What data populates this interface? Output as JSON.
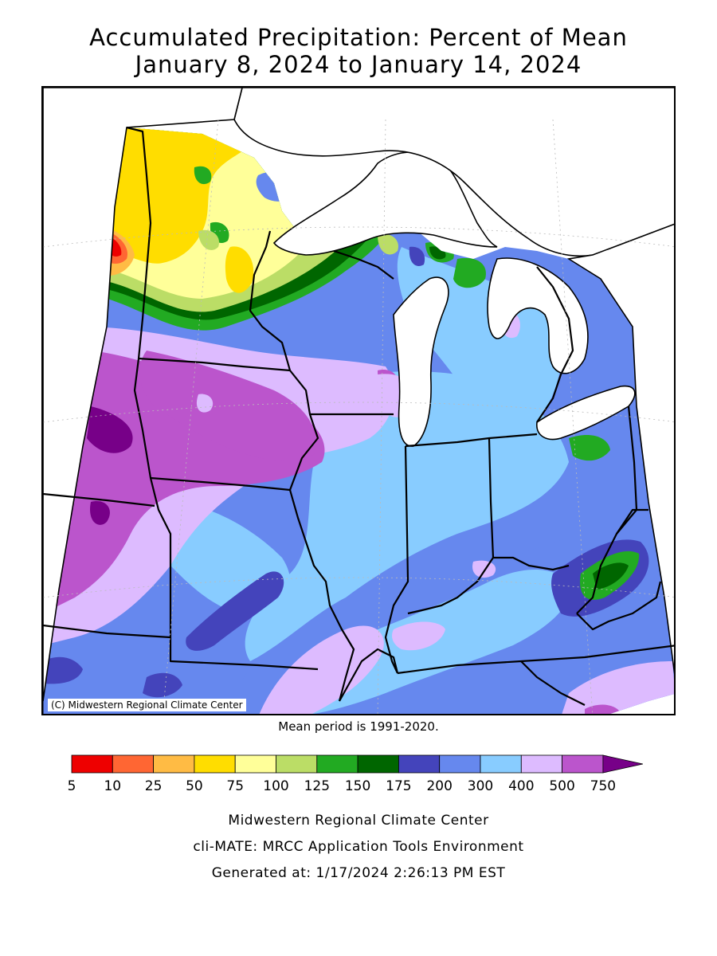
{
  "title": {
    "line1": "Accumulated Precipitation: Percent of Mean",
    "line2": "January 8, 2024 to January 14, 2024"
  },
  "map": {
    "copyright": "(C) Midwestern Regional Climate Center",
    "water_color": "#ffffff",
    "border_color": "#000000"
  },
  "mean_period": "Mean period is 1991-2020.",
  "legend": {
    "ticks": [
      "5",
      "10",
      "25",
      "50",
      "75",
      "100",
      "125",
      "150",
      "175",
      "200",
      "300",
      "400",
      "500",
      "750"
    ],
    "colors": [
      "#ee0000",
      "#ff6633",
      "#ffbb44",
      "#ffdd00",
      "#ffff99",
      "#bbdd66",
      "#22aa22",
      "#006600",
      "#4444bb",
      "#6688ee",
      "#88ccff",
      "#ddbbff",
      "#bb55cc",
      "#770088"
    ],
    "open_ended_top": true
  },
  "footer": {
    "line1": "Midwestern Regional Climate Center",
    "line2": "cli-MATE: MRCC Application Tools Environment",
    "line3": "Generated at: 1/17/2024 2:26:13 PM EST"
  }
}
